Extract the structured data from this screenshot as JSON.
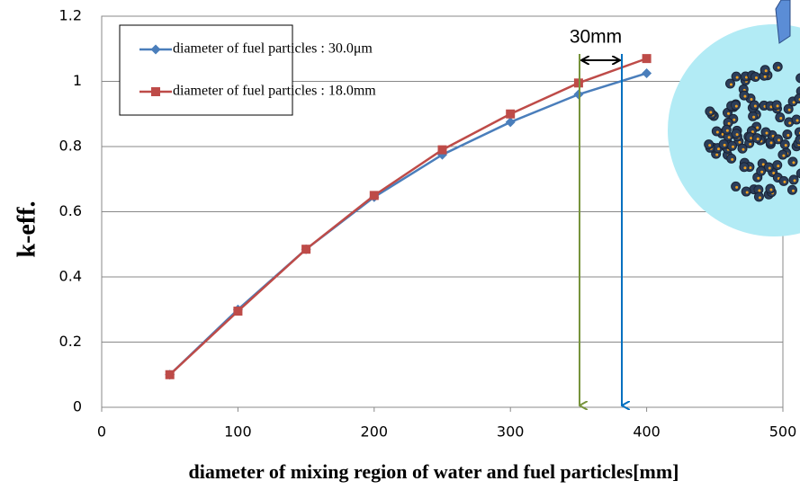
{
  "chart_data": {
    "type": "line",
    "xlabel": "diameter of mixing region of water and fuel particles[mm]",
    "ylabel": "k-eff.",
    "annotation": "30mm",
    "x": [
      50,
      100,
      150,
      200,
      250,
      300,
      350,
      400
    ],
    "series": [
      {
        "name": "diameter of fuel particles : 30.0μm",
        "color": "#4a7ebb",
        "marker": "diamond",
        "values": [
          0.1,
          0.3,
          0.485,
          0.645,
          0.775,
          0.875,
          0.96,
          1.025
        ]
      },
      {
        "name": "diameter of fuel particles : 18.0mm",
        "color": "#be4b48",
        "marker": "square",
        "values": [
          0.1,
          0.295,
          0.485,
          0.65,
          0.79,
          0.9,
          0.995,
          1.07
        ]
      }
    ],
    "xlim": [
      0,
      500
    ],
    "xticks": [
      0,
      100,
      200,
      300,
      400,
      500
    ],
    "ylim": [
      0,
      1.2
    ],
    "yticks": [
      0,
      0.2,
      0.4,
      0.6,
      0.8,
      1,
      1.2
    ],
    "grid": true
  }
}
